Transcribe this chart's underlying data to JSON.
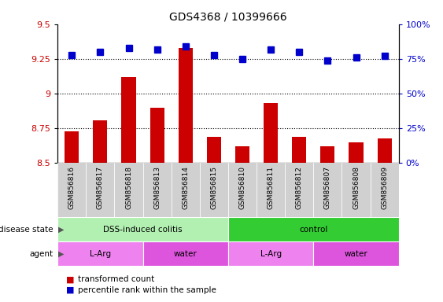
{
  "title": "GDS4368 / 10399666",
  "samples": [
    "GSM856816",
    "GSM856817",
    "GSM856818",
    "GSM856813",
    "GSM856814",
    "GSM856815",
    "GSM856810",
    "GSM856811",
    "GSM856812",
    "GSM856807",
    "GSM856808",
    "GSM856809"
  ],
  "bar_values": [
    8.73,
    8.81,
    9.12,
    8.9,
    9.33,
    8.69,
    8.62,
    8.93,
    8.69,
    8.62,
    8.65,
    8.68
  ],
  "percentile_values": [
    78,
    80,
    83,
    82,
    84,
    78,
    75,
    82,
    80,
    74,
    76,
    77
  ],
  "bar_color": "#cc0000",
  "percentile_color": "#0000cc",
  "ylim_left": [
    8.5,
    9.5
  ],
  "ylim_right": [
    0,
    100
  ],
  "yticks_left": [
    8.5,
    8.75,
    9.0,
    9.25,
    9.5
  ],
  "ytick_labels_left": [
    "8.5",
    "8.75",
    "9",
    "9.25",
    "9.5"
  ],
  "yticks_right": [
    0,
    25,
    50,
    75,
    100
  ],
  "ytick_labels_right": [
    "0%",
    "25%",
    "50%",
    "75%",
    "100%"
  ],
  "hlines": [
    8.75,
    9.0,
    9.25
  ],
  "disease_state_groups": [
    {
      "label": "DSS-induced colitis",
      "start": 0,
      "end": 6,
      "color": "#b2f0b2"
    },
    {
      "label": "control",
      "start": 6,
      "end": 12,
      "color": "#33cc33"
    }
  ],
  "agent_groups": [
    {
      "label": "L-Arg",
      "start": 0,
      "end": 3,
      "color": "#ee82ee"
    },
    {
      "label": "water",
      "start": 3,
      "end": 6,
      "color": "#dd55dd"
    },
    {
      "label": "L-Arg",
      "start": 6,
      "end": 9,
      "color": "#ee82ee"
    },
    {
      "label": "water",
      "start": 9,
      "end": 12,
      "color": "#dd55dd"
    }
  ],
  "tick_label_color_left": "#cc0000",
  "tick_label_color_right": "#0000cc",
  "bar_width": 0.5,
  "percentile_marker_size": 6,
  "xtick_bg_color": "#d0d0d0"
}
